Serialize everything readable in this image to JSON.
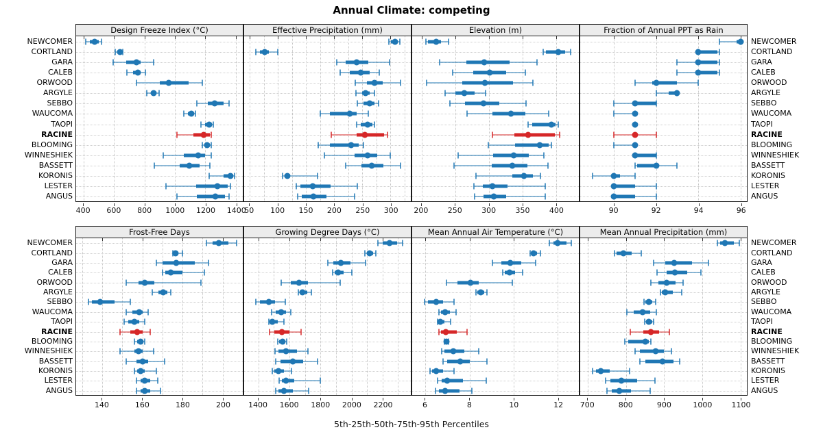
{
  "title": "Annual Climate: competing",
  "caption": "5th-25th-50th-75th-95th Percentiles",
  "colors": {
    "series": "#1f77b4",
    "highlight": "#d62728",
    "strip_bg": "#ececec",
    "grid": "#c4c4c4"
  },
  "highlight_site": "RACINE",
  "sites": [
    "NEWCOMER",
    "CORTLAND",
    "GARA",
    "CALEB",
    "ORWOOD",
    "ARGYLE",
    "SEBBO",
    "WAUCOMA",
    "TAOPI",
    "RACINE",
    "BLOOMING",
    "WINNESHIEK",
    "BASSETT",
    "KORONIS",
    "LESTER",
    "ANGUS"
  ],
  "chart_data": [
    {
      "type": "scatter",
      "subtype": "percentile-dot-whisker",
      "title": "Design Freeze Index (°C)",
      "percentiles": [
        5,
        25,
        50,
        75,
        95
      ],
      "xlim": [
        350,
        1446
      ],
      "ticks": [
        400,
        600,
        800,
        1000,
        1200,
        1400
      ],
      "minor_grid": false,
      "values": [
        [
          415,
          440,
          470,
          500,
          515
        ],
        [
          605,
          620,
          640,
          650,
          655
        ],
        [
          595,
          680,
          745,
          775,
          860
        ],
        [
          685,
          725,
          755,
          775,
          805
        ],
        [
          745,
          900,
          960,
          1090,
          1180
        ],
        [
          815,
          840,
          860,
          880,
          895
        ],
        [
          1145,
          1215,
          1260,
          1320,
          1355
        ],
        [
          1057,
          1085,
          1107,
          1120,
          1133
        ],
        [
          1170,
          1200,
          1225,
          1245,
          1250
        ],
        [
          1015,
          1120,
          1190,
          1230,
          1240
        ],
        [
          1180,
          1195,
          1210,
          1230,
          1240
        ],
        [
          925,
          1060,
          1155,
          1200,
          1240
        ],
        [
          865,
          1030,
          1095,
          1160,
          1230
        ],
        [
          1225,
          1320,
          1365,
          1385,
          1390
        ],
        [
          940,
          1140,
          1280,
          1345,
          1365
        ],
        [
          1015,
          1145,
          1265,
          1330,
          1355
        ]
      ]
    },
    {
      "type": "scatter",
      "subtype": "percentile-dot-whisker",
      "title": "Effective Precipitation (mm)",
      "percentiles": [
        5,
        25,
        50,
        75,
        95
      ],
      "xlim": [
        40,
        336
      ],
      "ticks": [
        50,
        100,
        150,
        200,
        250,
        300
      ],
      "minor_grid": true,
      "values": [
        [
          297,
          301,
          308,
          313,
          317
        ],
        [
          61,
          68,
          76,
          84,
          100
        ],
        [
          205,
          220,
          240,
          260,
          298
        ],
        [
          210,
          228,
          247,
          263,
          280
        ],
        [
          237,
          258,
          271,
          286,
          318
        ],
        [
          238,
          249,
          256,
          263,
          272
        ],
        [
          241,
          252,
          263,
          272,
          279
        ],
        [
          175,
          192,
          228,
          240,
          260
        ],
        [
          240,
          247,
          259,
          268,
          272
        ],
        [
          195,
          240,
          254,
          288,
          295
        ],
        [
          172,
          192,
          230,
          244,
          252
        ],
        [
          183,
          236,
          259,
          276,
          300
        ],
        [
          220,
          248,
          267,
          287,
          318
        ],
        [
          108,
          112,
          117,
          122,
          170
        ],
        [
          133,
          140,
          162,
          194,
          241
        ],
        [
          135,
          142,
          163,
          186,
          236
        ]
      ]
    },
    {
      "type": "scatter",
      "subtype": "percentile-dot-whisker",
      "title": "Elevation (m)",
      "percentiles": [
        5,
        25,
        50,
        75,
        95
      ],
      "xlim": [
        186,
        434
      ],
      "ticks": [
        200,
        250,
        300,
        350,
        400
      ],
      "minor_grid": false,
      "values": [
        [
          206,
          209,
          222,
          229,
          240
        ],
        [
          381,
          385,
          403,
          414,
          422
        ],
        [
          227,
          267,
          293,
          331,
          372
        ],
        [
          246,
          277,
          301,
          326,
          354
        ],
        [
          207,
          260,
          294,
          336,
          366
        ],
        [
          235,
          250,
          264,
          279,
          295
        ],
        [
          242,
          265,
          292,
          316,
          355
        ],
        [
          268,
          305,
          333,
          354,
          389
        ],
        [
          358,
          365,
          393,
          399,
          403
        ],
        [
          305,
          338,
          358,
          398,
          405
        ],
        [
          299,
          339,
          376,
          389,
          393
        ],
        [
          254,
          306,
          337,
          359,
          382
        ],
        [
          248,
          304,
          335,
          357,
          388
        ],
        [
          281,
          335,
          352,
          366,
          377
        ],
        [
          278,
          291,
          305,
          328,
          384
        ],
        [
          279,
          292,
          307,
          326,
          384
        ]
      ]
    },
    {
      "type": "scatter",
      "subtype": "percentile-dot-whisker",
      "title": "Fraction of Annual PPT as Rain",
      "percentiles": [
        5,
        25,
        50,
        75,
        95
      ],
      "xlim": [
        88.4,
        96.3
      ],
      "ticks": [
        90,
        92,
        94,
        96
      ],
      "minor_grid": false,
      "values": [
        [
          95.0,
          95.8,
          96.0,
          96.0,
          96.0
        ],
        [
          94.0,
          94.0,
          94.0,
          94.9,
          95.0
        ],
        [
          93.0,
          94.0,
          94.0,
          94.9,
          95.0
        ],
        [
          93.0,
          93.9,
          94.0,
          94.9,
          95.0
        ],
        [
          91.0,
          91.8,
          92.0,
          93.0,
          94.0
        ],
        [
          92.0,
          92.6,
          93.0,
          93.0,
          93.0
        ],
        [
          90.0,
          91.0,
          91.0,
          92.0,
          92.0
        ],
        [
          90.0,
          90.9,
          91.0,
          91.0,
          91.0
        ],
        [
          91.0,
          91.0,
          91.0,
          91.0,
          91.0
        ],
        [
          90.0,
          90.9,
          91.0,
          91.1,
          92.0
        ],
        [
          90.0,
          90.9,
          91.0,
          91.0,
          91.0
        ],
        [
          91.0,
          91.0,
          91.0,
          92.0,
          92.0
        ],
        [
          91.0,
          91.1,
          92.0,
          92.1,
          93.0
        ],
        [
          89.0,
          90.0,
          90.0,
          90.3,
          91.0
        ],
        [
          90.0,
          90.0,
          90.0,
          91.0,
          92.0
        ],
        [
          90.0,
          90.0,
          90.0,
          91.0,
          92.0
        ]
      ]
    },
    {
      "type": "scatter",
      "subtype": "percentile-dot-whisker",
      "title": "Frost-Free Days",
      "percentiles": [
        5,
        25,
        50,
        75,
        95
      ],
      "xlim": [
        127,
        210
      ],
      "ticks": [
        140,
        160,
        180,
        200
      ],
      "minor_grid": true,
      "values": [
        [
          192,
          195,
          198,
          203,
          207
        ],
        [
          175,
          176,
          176.5,
          178,
          180
        ],
        [
          167,
          170,
          177,
          186,
          193
        ],
        [
          170,
          171.5,
          174,
          180,
          191
        ],
        [
          152,
          158,
          161,
          166,
          189
        ],
        [
          165,
          168,
          170.5,
          172.5,
          174
        ],
        [
          133,
          135,
          139,
          146,
          154
        ],
        [
          152,
          155,
          158.5,
          160,
          163
        ],
        [
          151,
          153,
          156,
          158.5,
          161
        ],
        [
          149,
          154,
          157.5,
          160,
          164
        ],
        [
          156,
          157.5,
          159,
          160.5,
          161
        ],
        [
          149,
          156,
          158,
          160,
          165.5
        ],
        [
          152,
          157,
          160,
          163,
          171
        ],
        [
          156,
          157.5,
          159,
          161,
          167
        ],
        [
          157,
          159,
          161,
          164,
          167.5
        ],
        [
          157,
          159,
          161,
          164,
          169
        ]
      ]
    },
    {
      "type": "scatter",
      "subtype": "percentile-dot-whisker",
      "title": "Growing Degree Days (°C)",
      "percentiles": [
        5,
        25,
        50,
        75,
        95
      ],
      "xlim": [
        1308,
        2382
      ],
      "ticks": [
        1400,
        1600,
        1800,
        2000,
        2200
      ],
      "minor_grid": true,
      "values": [
        [
          2170,
          2200,
          2245,
          2295,
          2330
        ],
        [
          2085,
          2097,
          2115,
          2140,
          2155
        ],
        [
          1845,
          1882,
          1930,
          1995,
          2090
        ],
        [
          1878,
          1893,
          1915,
          1950,
          2000
        ],
        [
          1546,
          1607,
          1662,
          1717,
          1926
        ],
        [
          1656,
          1666,
          1684,
          1715,
          1743
        ],
        [
          1381,
          1410,
          1466,
          1505,
          1574
        ],
        [
          1483,
          1513,
          1546,
          1578,
          1610
        ],
        [
          1465,
          1475,
          1490,
          1525,
          1565
        ],
        [
          1473,
          1502,
          1549,
          1600,
          1675
        ],
        [
          1523,
          1535,
          1554,
          1571,
          1583
        ],
        [
          1505,
          1527,
          1578,
          1650,
          1717
        ],
        [
          1510,
          1542,
          1622,
          1688,
          1780
        ],
        [
          1488,
          1502,
          1530,
          1564,
          1615
        ],
        [
          1532,
          1549,
          1578,
          1630,
          1800
        ],
        [
          1510,
          1527,
          1564,
          1622,
          1725
        ]
      ]
    },
    {
      "type": "scatter",
      "subtype": "percentile-dot-whisker",
      "title": "Mean Annual Air Temperature (°C)",
      "percentiles": [
        5,
        25,
        50,
        75,
        95
      ],
      "xlim": [
        5.4,
        12.95
      ],
      "ticks": [
        6,
        8,
        10,
        12
      ],
      "minor_grid": false,
      "values": [
        [
          11.6,
          11.8,
          12.0,
          12.4,
          12.6
        ],
        [
          10.75,
          10.8,
          10.9,
          11.05,
          11.2
        ],
        [
          9.05,
          9.45,
          9.85,
          10.35,
          11.0
        ],
        [
          9.5,
          9.6,
          9.8,
          10.05,
          10.4
        ],
        [
          6.95,
          7.45,
          8.05,
          8.4,
          9.95
        ],
        [
          8.3,
          8.36,
          8.5,
          8.66,
          8.8
        ],
        [
          5.95,
          6.1,
          6.5,
          6.8,
          7.3
        ],
        [
          6.6,
          6.7,
          6.9,
          7.1,
          7.4
        ],
        [
          6.55,
          6.6,
          6.66,
          6.85,
          7.13
        ],
        [
          6.6,
          6.72,
          6.92,
          7.43,
          7.9
        ],
        [
          6.87,
          6.9,
          6.95,
          7.0,
          7.05
        ],
        [
          6.75,
          6.85,
          7.25,
          7.75,
          8.4
        ],
        [
          6.8,
          7.0,
          7.57,
          8.0,
          8.8
        ],
        [
          6.2,
          6.3,
          6.5,
          6.8,
          7.3
        ],
        [
          6.55,
          6.75,
          7.0,
          7.7,
          8.75
        ],
        [
          6.45,
          6.6,
          6.9,
          7.55,
          8.1
        ]
      ]
    },
    {
      "type": "scatter",
      "subtype": "percentile-dot-whisker",
      "title": "Mean Annual Precipitation (mm)",
      "percentiles": [
        5,
        25,
        50,
        75,
        95
      ],
      "xlim": [
        680,
        1117
      ],
      "ticks": [
        700,
        800,
        900,
        1000,
        1100
      ],
      "minor_grid": false,
      "values": [
        [
          1040,
          1047,
          1060,
          1082,
          1097
        ],
        [
          770,
          776,
          793,
          814,
          840
        ],
        [
          873,
          903,
          926,
          974,
          1017
        ],
        [
          882,
          906,
          928,
          961,
          997
        ],
        [
          865,
          885,
          907,
          930,
          950
        ],
        [
          890,
          894,
          903,
          922,
          947
        ],
        [
          847,
          851,
          859,
          868,
          877
        ],
        [
          802,
          821,
          843,
          863,
          880
        ],
        [
          849,
          853,
          860,
          868,
          872
        ],
        [
          812,
          846,
          866,
          887,
          913
        ],
        [
          797,
          806,
          850,
          860,
          865
        ],
        [
          824,
          836,
          877,
          900,
          919
        ],
        [
          837,
          850,
          895,
          925,
          941
        ],
        [
          713,
          721,
          734,
          757,
          810
        ],
        [
          746,
          760,
          788,
          830,
          876
        ],
        [
          750,
          763,
          782,
          814,
          864
        ]
      ]
    }
  ]
}
